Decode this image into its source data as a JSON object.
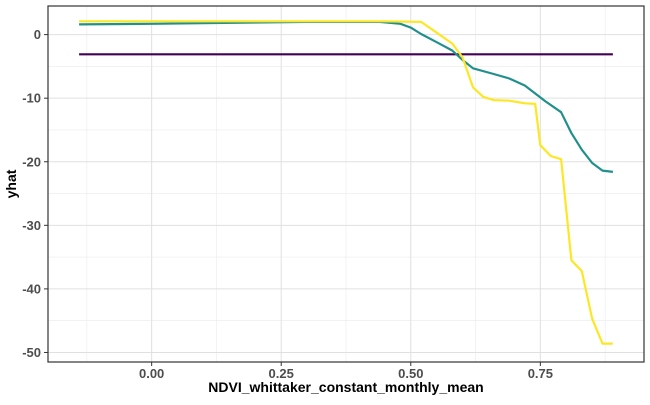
{
  "chart_data": {
    "type": "line",
    "xlabel": "NDVI_whittaker_constant_monthly_mean",
    "ylabel": "yhat",
    "xlim": [
      -0.2,
      0.95
    ],
    "ylim": [
      -51.5,
      4.5
    ],
    "x_ticks": [
      0.0,
      0.25,
      0.5,
      0.75
    ],
    "x_tick_labels": [
      "0.00",
      "0.25",
      "0.50",
      "0.75"
    ],
    "y_ticks": [
      0,
      -10,
      -20,
      -30,
      -40,
      -50
    ],
    "y_tick_labels": [
      "0",
      "-10",
      "-20",
      "-30",
      "-40",
      "-50"
    ],
    "grid": true,
    "legend": "none",
    "series": [
      {
        "color": "#440154",
        "x": [
          -0.14,
          0.89
        ],
        "y": [
          -3.1,
          -3.1
        ]
      },
      {
        "color": "#21908C",
        "x": [
          -0.14,
          0.0,
          0.1,
          0.2,
          0.3,
          0.44,
          0.48,
          0.5,
          0.52,
          0.55,
          0.58,
          0.6,
          0.62,
          0.66,
          0.69,
          0.72,
          0.76,
          0.79,
          0.81,
          0.83,
          0.85,
          0.87,
          0.89
        ],
        "y": [
          1.6,
          1.7,
          1.8,
          1.9,
          2.0,
          2.0,
          1.7,
          1.1,
          0.1,
          -1.2,
          -2.5,
          -4.0,
          -5.3,
          -6.2,
          -6.9,
          -8.0,
          -10.5,
          -12.2,
          -15.5,
          -18.1,
          -20.2,
          -21.4,
          -21.6
        ]
      },
      {
        "color": "#FDE725",
        "x": [
          -0.14,
          0.0,
          0.2,
          0.3,
          0.4,
          0.45,
          0.52,
          0.55,
          0.58,
          0.6,
          0.62,
          0.64,
          0.66,
          0.69,
          0.72,
          0.74,
          0.75,
          0.77,
          0.79,
          0.81,
          0.83,
          0.85,
          0.87,
          0.89
        ],
        "y": [
          2.1,
          2.1,
          2.1,
          2.1,
          2.1,
          2.1,
          2.0,
          0.3,
          -1.4,
          -3.6,
          -8.3,
          -9.8,
          -10.3,
          -10.4,
          -10.8,
          -10.9,
          -17.4,
          -19.1,
          -19.6,
          -35.5,
          -37.2,
          -44.7,
          -48.6,
          -48.6
        ]
      }
    ]
  }
}
